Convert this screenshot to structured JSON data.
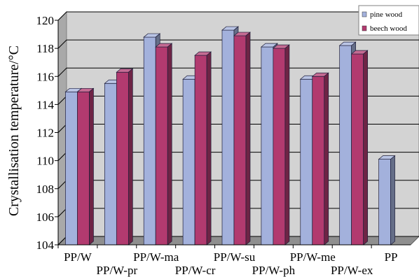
{
  "chart_data": {
    "type": "bar",
    "categories": [
      "PP/W",
      "PP/W-pr",
      "PP/W-ma",
      "PP/W-cr",
      "PP/W-su",
      "PP/W-ph",
      "PP/W-me",
      "PP/W-ex",
      "PP"
    ],
    "series": [
      {
        "name": "pine wood",
        "color": "#a3b1dc",
        "values": [
          114.9,
          115.5,
          118.8,
          115.8,
          119.3,
          118.1,
          115.8,
          118.2,
          110.1
        ]
      },
      {
        "name": "beech wood",
        "color": "#b23a6f",
        "values": [
          114.9,
          116.3,
          118.1,
          117.5,
          118.9,
          118.0,
          116.0,
          117.6,
          null
        ]
      }
    ],
    "title": "",
    "xlabel": "",
    "ylabel": "Crystallisation temperature/°C",
    "ylim": [
      104,
      120
    ],
    "yticks": [
      104,
      106,
      108,
      110,
      112,
      114,
      116,
      118,
      120
    ],
    "grid": true,
    "legend": "top-right",
    "style": "3d-bar",
    "wall_color": "#d3d3d3"
  }
}
